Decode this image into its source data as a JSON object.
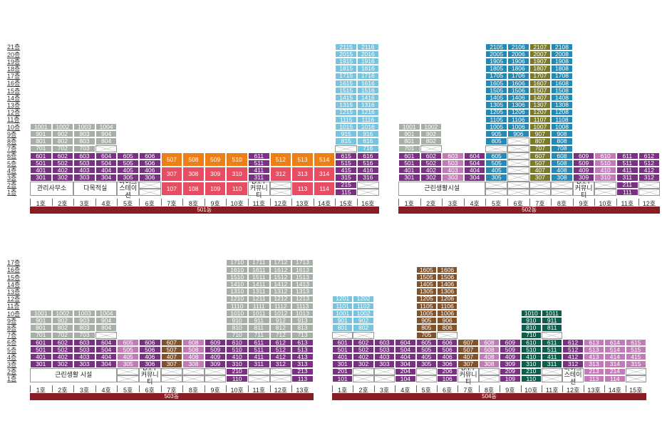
{
  "colors": {
    "gray": "#a7b0a6",
    "lightblue": "#78c3dd",
    "blue": "#2589b4",
    "purple": "#7a3184",
    "pink": "#c27bb7",
    "orange": "#ee7f17",
    "red": "#e84d63",
    "brown": "#82522a",
    "olive": "#7a7a2c",
    "darkteal": "#0f5d4d",
    "bar": "#8a1d23"
  },
  "floors": [
    "1층",
    "2층",
    "3층",
    "4층",
    "5층",
    "6층",
    "7층",
    "8층",
    "9층",
    "10층",
    "11층",
    "12층",
    "13층",
    "14층",
    "15층",
    "16층",
    "17층",
    "18층",
    "19층",
    "20층",
    "21층"
  ],
  "buildings": [
    {
      "name": "501동",
      "lines": 16,
      "maxFloor": 21,
      "ox": 42,
      "baseY": 289,
      "unitW": 30.6,
      "rowH": 10.2,
      "labelX": 10,
      "hono": [
        "1호",
        "2호",
        "3호",
        "4호",
        "5호",
        "6호",
        "7호",
        "8호",
        "9호",
        "10호",
        "11호",
        "12호",
        "13호",
        "14호",
        "15호",
        "16호"
      ],
      "facilities": [
        {
          "text": "관리사무소",
          "from": 1,
          "to": 2,
          "floors": [
            1,
            2
          ]
        },
        {
          "text": "다목적실",
          "from": 3,
          "to": 4,
          "floors": [
            1,
            2
          ]
        },
        {
          "text": "바이크\n스테이션",
          "from": 5,
          "to": 5,
          "floors": [
            1,
            2
          ]
        },
        {
          "text": "D.I.Y\n커뮤니티",
          "from": 11,
          "to": 11,
          "floors": [
            1,
            2
          ]
        }
      ],
      "lineDefs": [
        {
          "line": 1,
          "floors": [
            3,
            10
          ],
          "colors": {
            "3-6": "purple",
            "7-10": "gray"
          }
        },
        {
          "line": 2,
          "floors": [
            3,
            10
          ],
          "colors": {
            "3-6": "purple",
            "7-10": "gray"
          }
        },
        {
          "line": 3,
          "floors": [
            3,
            10
          ],
          "colors": {
            "3-6": "purple",
            "7-10": "gray"
          }
        },
        {
          "line": 4,
          "floors": [
            3,
            10
          ],
          "colors": {
            "3-6": "purple",
            "8-10": "gray"
          },
          "x": [
            7
          ]
        },
        {
          "line": 5,
          "floors": [
            3,
            6
          ],
          "colors": {
            "3-6": "purple"
          }
        },
        {
          "line": 6,
          "floors": [
            1,
            6
          ],
          "colors": {
            "3-6": "purple"
          },
          "x": [
            1,
            2
          ]
        },
        {
          "line": 7,
          "floors": [
            1,
            6
          ],
          "colors": {
            "1-2": "red",
            "3-4": "red",
            "5-6": "orange"
          },
          "merge": true
        },
        {
          "line": 8,
          "floors": [
            1,
            6
          ],
          "colors": {
            "1-2": "red",
            "3-4": "red",
            "5-6": "orange"
          },
          "merge": true
        },
        {
          "line": 9,
          "floors": [
            1,
            6
          ],
          "colors": {
            "1-2": "red",
            "3-4": "red",
            "5-6": "orange"
          },
          "merge": true
        },
        {
          "line": 10,
          "floors": [
            1,
            6
          ],
          "colors": {
            "1-2": "red",
            "3-4": "red",
            "5-6": "orange"
          },
          "merge": true
        },
        {
          "line": 11,
          "floors": [
            3,
            6
          ],
          "colors": {
            "3-6": "purple"
          }
        },
        {
          "line": 12,
          "floors": [
            1,
            6
          ],
          "colors": {
            "3-4": "red",
            "5-6": "orange"
          },
          "merge": true,
          "x": [
            1,
            2
          ]
        },
        {
          "line": 13,
          "floors": [
            1,
            6
          ],
          "colors": {
            "1-2": "red",
            "3-4": "red",
            "5-6": "orange"
          },
          "merge": true
        },
        {
          "line": 14,
          "floors": [
            1,
            6
          ],
          "colors": {
            "1-2": "red",
            "3-4": "red",
            "5-6": "orange"
          },
          "merge": true
        },
        {
          "line": 15,
          "floors": [
            1,
            21
          ],
          "colors": {
            "1-6": "purple",
            "8-21": "lightblue"
          },
          "x": [
            7
          ]
        },
        {
          "line": 16,
          "floors": [
            1,
            21
          ],
          "colors": {
            "3-6": "purple",
            "7-21": "lightblue"
          },
          "x": [
            1,
            2
          ]
        }
      ]
    },
    {
      "name": "502동",
      "lines": 12,
      "maxFloor": 21,
      "ox": 559,
      "baseY": 289,
      "unitW": 30.6,
      "rowH": 10.2,
      "labelX": null,
      "hono": [
        "1호",
        "2호",
        "3호",
        "4호",
        "5호",
        "6호",
        "7호",
        "8호",
        "9호",
        "10호",
        "11호",
        "12호"
      ],
      "facilities": [
        {
          "text": "근린생활시설",
          "from": 1,
          "to": 4,
          "floors": [
            1,
            2
          ]
        },
        {
          "text": "D.I.Y\n커뮤니티",
          "from": 9,
          "to": 9,
          "floors": [
            1,
            2
          ]
        }
      ],
      "lineDefs": [
        {
          "line": 1,
          "floors": [
            3,
            10
          ],
          "colors": {
            "3-6": "purple",
            "7-10": "gray"
          }
        },
        {
          "line": 2,
          "floors": [
            3,
            10
          ],
          "colors": {
            "3-6": "purple",
            "8-10": "gray"
          },
          "x": [
            7
          ]
        },
        {
          "line": 3,
          "floors": [
            3,
            6
          ],
          "colors": {
            "3-6": "pink"
          }
        },
        {
          "line": 4,
          "floors": [
            3,
            6
          ],
          "colors": {
            "3-6": "purple"
          }
        },
        {
          "line": 5,
          "floors": [
            1,
            21
          ],
          "colors": {
            "3-6": "blue",
            "8-21": "blue"
          },
          "merge5": true,
          "x": [
            1,
            2,
            7
          ]
        },
        {
          "line": 6,
          "floors": [
            1,
            21
          ],
          "colors": {
            "9-21": "blue"
          },
          "x": [
            1,
            2,
            7,
            8
          ]
        },
        {
          "line": 7,
          "floors": [
            1,
            21
          ],
          "colors": {
            "3-6": "olive",
            "7-21": "olive"
          },
          "x": [
            1,
            2
          ]
        },
        {
          "line": 8,
          "floors": [
            1,
            21
          ],
          "colors": {
            "3-6": "blue",
            "7-21": "blue"
          },
          "x": [
            1,
            2
          ]
        },
        {
          "line": 9,
          "floors": [
            3,
            6
          ],
          "colors": {
            "3-6": "purple"
          }
        },
        {
          "line": 10,
          "floors": [
            1,
            6
          ],
          "colors": {
            "3-6": "pink"
          },
          "x": [
            1,
            2
          ]
        },
        {
          "line": 11,
          "floors": [
            1,
            6
          ],
          "colors": {
            "1-6": "purple"
          }
        },
        {
          "line": 12,
          "floors": [
            1,
            6
          ],
          "colors": {
            "3-6": "purple"
          },
          "x": [
            1,
            2
          ]
        }
      ]
    },
    {
      "name": "503동",
      "lines": 13,
      "maxFloor": 17,
      "ox": 42,
      "baseY": 551,
      "unitW": 30.6,
      "rowH": 10.2,
      "labelX": 10,
      "hono": [
        "1호",
        "2호",
        "3호",
        "4호",
        "5호",
        "6호",
        "7호",
        "8호",
        "9호",
        "10호",
        "11호",
        "12호",
        "13호"
      ],
      "facilities": [
        {
          "text": "근린생활 시설",
          "from": 1,
          "to": 4,
          "floors": [
            1,
            2
          ]
        },
        {
          "text": "D.I.Y\n커뮤니티",
          "from": 6,
          "to": 6,
          "floors": [
            1,
            2
          ]
        }
      ],
      "lineDefs": [
        {
          "line": 1,
          "floors": [
            3,
            10
          ],
          "colors": {
            "3-6": "purple",
            "7-10": "gray"
          }
        },
        {
          "line": 2,
          "floors": [
            3,
            10
          ],
          "colors": {
            "3-6": "purple",
            "7-10": "gray"
          }
        },
        {
          "line": 3,
          "floors": [
            3,
            10
          ],
          "colors": {
            "3-6": "purple",
            "7-10": "gray"
          }
        },
        {
          "line": 4,
          "floors": [
            3,
            10
          ],
          "colors": {
            "3-6": "purple",
            "8-10": "gray"
          },
          "x": [
            7
          ]
        },
        {
          "line": 5,
          "floors": [
            1,
            6
          ],
          "colors": {
            "3-6": "pink"
          },
          "x": [
            1,
            2
          ]
        },
        {
          "line": 6,
          "floors": [
            3,
            6
          ],
          "colors": {
            "3-6": "purple"
          }
        },
        {
          "line": 7,
          "floors": [
            1,
            6
          ],
          "colors": {
            "3-6": "brown"
          },
          "x": [
            1,
            2
          ]
        },
        {
          "line": 8,
          "floors": [
            1,
            6
          ],
          "colors": {
            "3-6": "pink"
          },
          "x": [
            1,
            2
          ]
        },
        {
          "line": 9,
          "floors": [
            1,
            6
          ],
          "colors": {
            "3-6": "purple"
          },
          "x": [
            1,
            2
          ]
        },
        {
          "line": 10,
          "floors": [
            1,
            17
          ],
          "colors": {
            "1-6": "purple",
            "7-17": "gray"
          }
        },
        {
          "line": 11,
          "floors": [
            1,
            17
          ],
          "colors": {
            "3-6": "purple",
            "7-17": "gray"
          },
          "x": [
            1,
            2
          ]
        },
        {
          "line": 12,
          "floors": [
            1,
            17
          ],
          "colors": {
            "3-6": "purple",
            "7-17": "gray"
          },
          "x": [
            1,
            2
          ]
        },
        {
          "line": 13,
          "floors": [
            1,
            17
          ],
          "colors": {
            "1-6": "purple",
            "7-17": "gray"
          }
        }
      ]
    },
    {
      "name": "504동",
      "lines": 15,
      "maxFloor": 16,
      "ox": 466,
      "baseY": 551,
      "unitW": 29.4,
      "rowH": 10.2,
      "labelX": null,
      "hono": [
        "1호",
        "2호",
        "3호",
        "4호",
        "5호",
        "6호",
        "7호",
        "8호",
        "9호",
        "10호",
        "11호",
        "12호",
        "13호",
        "14호",
        "15호"
      ],
      "facilities": [
        {
          "text": "D.I.Y\n커뮤니티",
          "from": 7,
          "to": 7,
          "floors": [
            1,
            2
          ]
        },
        {
          "text": "바이크\n스테이션",
          "from": 12,
          "to": 12,
          "floors": [
            1,
            2
          ]
        }
      ],
      "lineDefs": [
        {
          "line": 1,
          "floors": [
            1,
            12
          ],
          "colors": {
            "1-6": "purple",
            "8-12": "lightblue"
          },
          "x": [
            7
          ]
        },
        {
          "line": 2,
          "floors": [
            1,
            12
          ],
          "colors": {
            "3-6": "purple",
            "8-12": "lightblue"
          },
          "x": [
            1,
            2,
            7
          ]
        },
        {
          "line": 3,
          "floors": [
            1,
            6
          ],
          "colors": {
            "3-6": "purple"
          },
          "x": [
            1,
            2
          ]
        },
        {
          "line": 4,
          "floors": [
            1,
            6
          ],
          "colors": {
            "1-6": "purple"
          }
        },
        {
          "line": 5,
          "floors": [
            1,
            16
          ],
          "colors": {
            "3-6": "purple",
            "7-16": "brown"
          },
          "x": [
            1,
            2
          ]
        },
        {
          "line": 6,
          "floors": [
            1,
            16
          ],
          "colors": {
            "1-6": "purple",
            "8-16": "brown"
          },
          "x": [
            7
          ]
        },
        {
          "line": 7,
          "floors": [
            3,
            6
          ],
          "colors": {
            "3-6": "brown"
          }
        },
        {
          "line": 8,
          "floors": [
            1,
            6
          ],
          "colors": {
            "3-6": "pink"
          },
          "x": [
            1,
            2
          ]
        },
        {
          "line": 9,
          "floors": [
            1,
            6
          ],
          "colors": {
            "1-6": "purple"
          }
        },
        {
          "line": 10,
          "floors": [
            1,
            10
          ],
          "colors": {
            "1-6": "darkteal",
            "7-10": "darkteal"
          }
        },
        {
          "line": 11,
          "floors": [
            1,
            10
          ],
          "colors": {
            "3-6": "darkteal",
            "8-10": "darkteal"
          },
          "x": [
            1,
            2,
            7
          ]
        },
        {
          "line": 12,
          "floors": [
            3,
            6
          ],
          "colors": {
            "3-6": "purple"
          }
        },
        {
          "line": 13,
          "floors": [
            1,
            6
          ],
          "colors": {
            "1-6": "pink"
          }
        },
        {
          "line": 14,
          "floors": [
            1,
            6
          ],
          "colors": {
            "1-6": "pink"
          }
        },
        {
          "line": 15,
          "floors": [
            1,
            6
          ],
          "colors": {
            "3-6": "pink"
          },
          "x": [
            1,
            2
          ]
        }
      ]
    }
  ]
}
